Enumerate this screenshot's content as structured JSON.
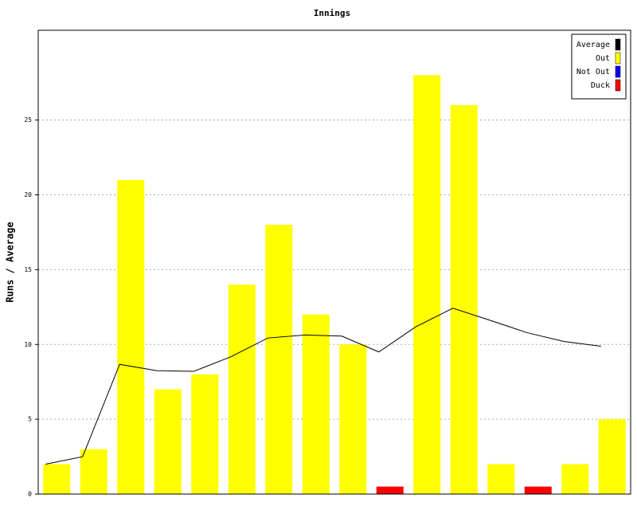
{
  "chart_data": {
    "type": "bar",
    "title": "Innings",
    "y_label": "Runs / Average",
    "series": [
      {
        "name": "Average",
        "color": "#000000",
        "kind": "line",
        "values": [
          2,
          2.5,
          8.67,
          8.25,
          8.2,
          9.17,
          10.43,
          10.63,
          10.56,
          9.5,
          11.18,
          12.42,
          11.62,
          10.79,
          10.2,
          9.88
        ]
      },
      {
        "name": "Out",
        "color": "#ffff00",
        "kind": "bar",
        "values": [
          2,
          3,
          21,
          7,
          8,
          14,
          18,
          12,
          10,
          null,
          28,
          26,
          2,
          null,
          2,
          5
        ]
      },
      {
        "name": "Not Out",
        "color": "#0000ff",
        "kind": "bar",
        "values": [
          null,
          null,
          null,
          null,
          null,
          null,
          null,
          null,
          null,
          null,
          null,
          null,
          null,
          null,
          null,
          null
        ]
      },
      {
        "name": "Duck",
        "color": "#ff0000",
        "kind": "bar",
        "values": [
          null,
          null,
          null,
          null,
          null,
          null,
          null,
          null,
          null,
          0.5,
          null,
          null,
          null,
          0.5,
          null,
          null
        ]
      }
    ],
    "ylim": [
      0,
      31
    ],
    "yticks": [
      0,
      5,
      10,
      15,
      20,
      25
    ],
    "grid": true,
    "legend": "top-right"
  }
}
